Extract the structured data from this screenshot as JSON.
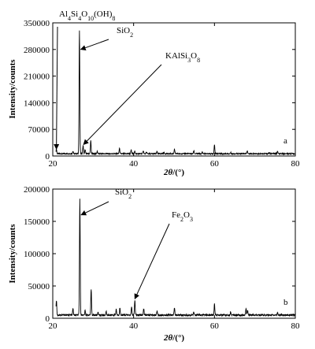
{
  "chart_data": [
    {
      "type": "line",
      "panel_label": "a",
      "xlabel_sym": "2θ",
      "xlabel_unit": "/(°)",
      "ylabel": "Intensity/counts",
      "xlim": [
        20,
        80
      ],
      "ylim": [
        0,
        350000
      ],
      "xticks": [
        20,
        40,
        60,
        80
      ],
      "yticks": [
        0,
        70000,
        140000,
        210000,
        280000,
        350000
      ],
      "baseline": 6000,
      "peaks": [
        {
          "x": 20.9,
          "y": 18000
        },
        {
          "x": 25.0,
          "y": 13000
        },
        {
          "x": 26.6,
          "y": 330000
        },
        {
          "x": 27.5,
          "y": 28000
        },
        {
          "x": 28.0,
          "y": 16000
        },
        {
          "x": 29.4,
          "y": 40000
        },
        {
          "x": 31.0,
          "y": 12000
        },
        {
          "x": 36.5,
          "y": 20000
        },
        {
          "x": 39.4,
          "y": 16000
        },
        {
          "x": 40.3,
          "y": 13000
        },
        {
          "x": 42.4,
          "y": 14000
        },
        {
          "x": 43.2,
          "y": 10000
        },
        {
          "x": 45.8,
          "y": 12000
        },
        {
          "x": 47.5,
          "y": 9000
        },
        {
          "x": 50.1,
          "y": 18000
        },
        {
          "x": 54.9,
          "y": 14000
        },
        {
          "x": 57.0,
          "y": 10000
        },
        {
          "x": 60.0,
          "y": 30000
        },
        {
          "x": 64.0,
          "y": 9000
        },
        {
          "x": 68.1,
          "y": 14000
        },
        {
          "x": 73.5,
          "y": 9000
        },
        {
          "x": 75.6,
          "y": 12000
        }
      ],
      "annotations": [
        {
          "base": "Al",
          "sub1": "4",
          "mid": "Si",
          "sub2": "4",
          "mid2": "O",
          "sub3": "10",
          "mid3": "(OH)",
          "sub4": "8",
          "target_x": 20.9,
          "target_y": 18000
        },
        {
          "base": "SiO",
          "sub1": "2",
          "target_x": 26.9,
          "target_y": 280000
        },
        {
          "base": "KAlSi",
          "sub1": "3",
          "mid": "O",
          "sub2": "8",
          "target_x": 27.6,
          "target_y": 30000
        }
      ]
    },
    {
      "type": "line",
      "panel_label": "b",
      "xlabel_sym": "2θ",
      "xlabel_unit": "/(°)",
      "ylabel": "Intensity/counts",
      "xlim": [
        20,
        80
      ],
      "ylim": [
        0,
        200000
      ],
      "xticks": [
        20,
        40,
        60,
        80
      ],
      "yticks": [
        0,
        50000,
        100000,
        150000,
        200000
      ],
      "baseline": 5000,
      "peaks": [
        {
          "x": 20.9,
          "y": 28000
        },
        {
          "x": 25.0,
          "y": 15000
        },
        {
          "x": 26.7,
          "y": 185000
        },
        {
          "x": 28.0,
          "y": 12000
        },
        {
          "x": 29.5,
          "y": 45000
        },
        {
          "x": 31.2,
          "y": 10000
        },
        {
          "x": 33.2,
          "y": 11000
        },
        {
          "x": 35.7,
          "y": 14000
        },
        {
          "x": 36.6,
          "y": 16000
        },
        {
          "x": 39.5,
          "y": 18000
        },
        {
          "x": 40.3,
          "y": 28000
        },
        {
          "x": 42.5,
          "y": 15000
        },
        {
          "x": 45.8,
          "y": 12000
        },
        {
          "x": 50.1,
          "y": 16000
        },
        {
          "x": 54.9,
          "y": 10000
        },
        {
          "x": 60.0,
          "y": 22000
        },
        {
          "x": 64.0,
          "y": 10000
        },
        {
          "x": 67.8,
          "y": 15000
        },
        {
          "x": 68.2,
          "y": 12000
        },
        {
          "x": 75.6,
          "y": 9000
        }
      ],
      "annotations": [
        {
          "base": "SiO",
          "sub1": "2",
          "target_x": 27.0,
          "target_y": 160000
        },
        {
          "base": "Fe",
          "sub1": "2",
          "mid": "O",
          "sub2": "3",
          "target_x": 40.3,
          "target_y": 30000
        }
      ]
    }
  ]
}
